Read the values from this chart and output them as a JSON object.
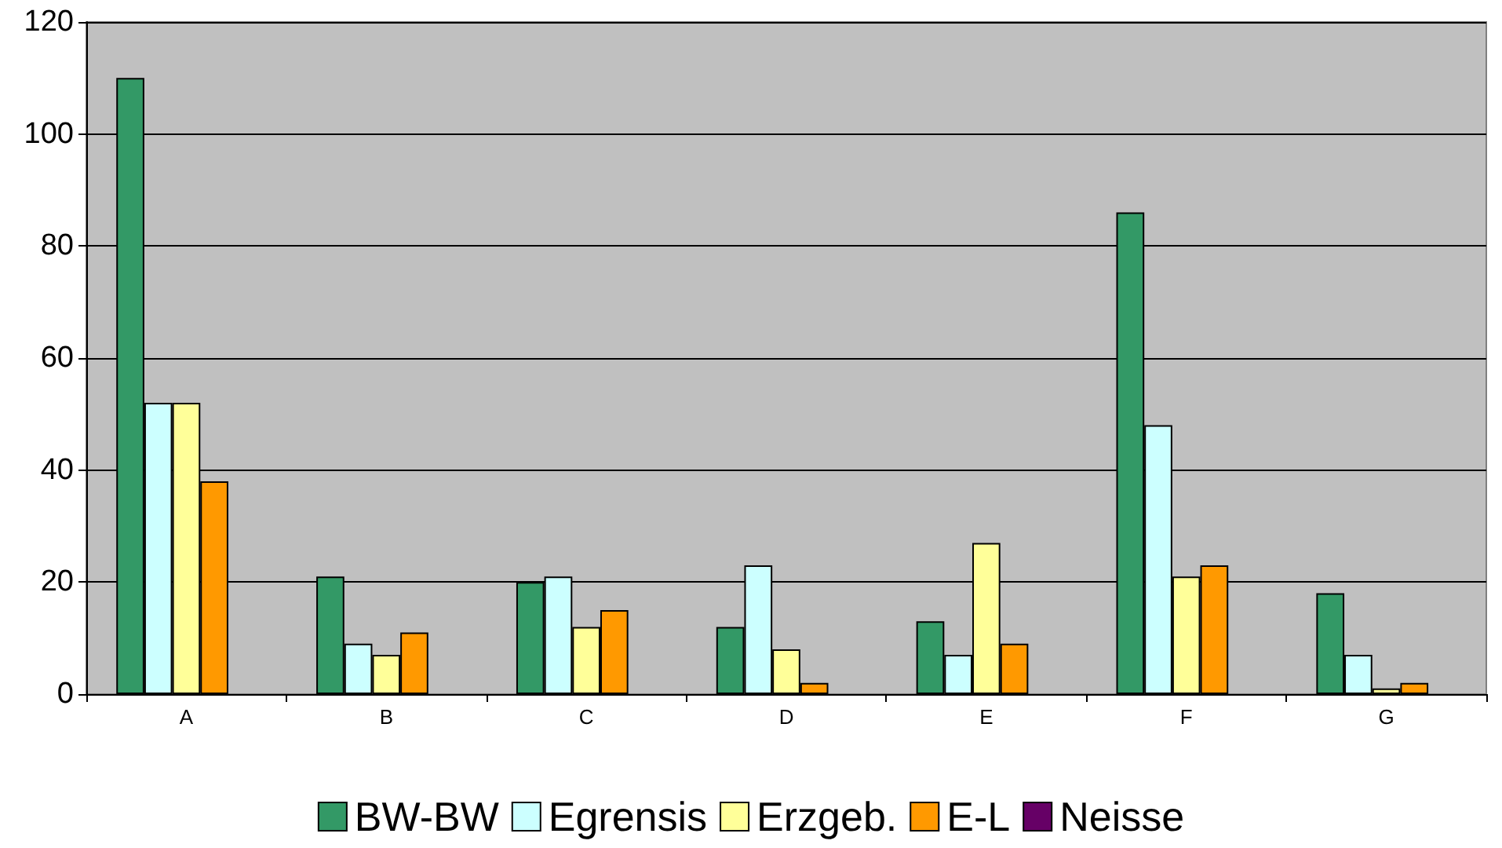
{
  "chart_data": {
    "type": "bar",
    "categories": [
      "A",
      "B",
      "C",
      "D",
      "E",
      "F",
      "G"
    ],
    "series": [
      {
        "name": "BW-BW",
        "color": "#339966",
        "values": [
          110,
          21,
          20,
          12,
          13,
          86,
          18
        ]
      },
      {
        "name": "Egrensis",
        "color": "#ccffff",
        "values": [
          52,
          9,
          21,
          23,
          7,
          48,
          7
        ]
      },
      {
        "name": "Erzgeb.",
        "color": "#ffff99",
        "values": [
          52,
          7,
          12,
          8,
          27,
          21,
          1
        ]
      },
      {
        "name": "E-L",
        "color": "#ff9900",
        "values": [
          38,
          11,
          15,
          2,
          9,
          23,
          2
        ]
      },
      {
        "name": "Neisse",
        "color": "#660066",
        "values": [
          null,
          null,
          null,
          null,
          null,
          null,
          null
        ]
      }
    ],
    "ylim": [
      0,
      120
    ],
    "yticks": [
      0,
      20,
      40,
      60,
      80,
      100,
      120
    ],
    "grid": "y",
    "legend": "bottom"
  }
}
